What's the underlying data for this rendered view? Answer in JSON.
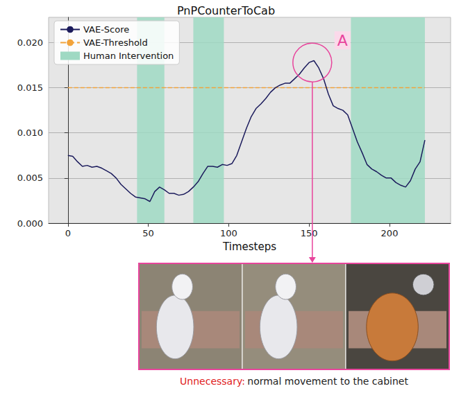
{
  "chart_data": {
    "type": "line",
    "title": "PnPCounterToCab",
    "x_label": "Timesteps",
    "x": [
      0,
      3,
      6,
      9,
      12,
      15,
      18,
      21,
      24,
      27,
      30,
      33,
      36,
      39,
      42,
      45,
      48,
      51,
      54,
      57,
      60,
      63,
      66,
      69,
      72,
      75,
      78,
      81,
      84,
      87,
      90,
      93,
      96,
      99,
      102,
      105,
      108,
      111,
      114,
      117,
      120,
      123,
      126,
      129,
      132,
      135,
      138,
      141,
      144,
      147,
      150,
      153,
      156,
      159,
      162,
      165,
      168,
      171,
      174,
      177,
      180,
      183,
      186,
      189,
      192,
      195,
      198,
      201,
      204,
      207,
      210,
      213,
      216,
      219,
      222
    ],
    "series": [
      {
        "name": "VAE-Score",
        "color": "#1b1b5c",
        "line_style": "solid",
        "values": [
          0.0075,
          0.0074,
          0.0068,
          0.0063,
          0.0064,
          0.0062,
          0.0063,
          0.0061,
          0.0058,
          0.0055,
          0.005,
          0.0043,
          0.0038,
          0.0033,
          0.0029,
          0.0028,
          0.0027,
          0.0024,
          0.0035,
          0.004,
          0.0037,
          0.0033,
          0.0033,
          0.0031,
          0.0032,
          0.0035,
          0.004,
          0.0046,
          0.0055,
          0.0063,
          0.0063,
          0.0062,
          0.0065,
          0.0064,
          0.0066,
          0.0075,
          0.009,
          0.0105,
          0.0118,
          0.0127,
          0.0132,
          0.0138,
          0.0145,
          0.015,
          0.0153,
          0.0155,
          0.0155,
          0.016,
          0.0165,
          0.0172,
          0.0178,
          0.018,
          0.0172,
          0.016,
          0.0143,
          0.013,
          0.0127,
          0.0125,
          0.012,
          0.0105,
          0.009,
          0.0078,
          0.0065,
          0.006,
          0.0057,
          0.0053,
          0.005,
          0.005,
          0.0045,
          0.0042,
          0.004,
          0.0047,
          0.006,
          0.0068,
          0.0092
        ]
      }
    ],
    "threshold": {
      "name": "VAE-Threshold",
      "value": 0.015,
      "color": "#f2a33a",
      "line_style": "dashed"
    },
    "intervals": {
      "name": "Human Intervention",
      "color": "#9fd9c3",
      "ranges": [
        [
          43,
          60
        ],
        [
          78,
          97
        ],
        [
          176,
          222
        ]
      ]
    },
    "xlim": [
      -12,
      238
    ],
    "xticks": [
      0,
      50,
      100,
      150,
      200
    ],
    "ylim": [
      0,
      0.0228
    ],
    "yticks": [
      {
        "value": 0,
        "label": "0.000"
      },
      {
        "value": 0.005,
        "label": "0.005"
      },
      {
        "value": 0.01,
        "label": "0.010"
      },
      {
        "value": 0.015,
        "label": "0.015"
      },
      {
        "value": 0.02,
        "label": "0.020"
      }
    ],
    "grid": "y",
    "legend": "upper left",
    "annotation": {
      "label": "A",
      "x": 152,
      "y": 0.0178,
      "color": "#e8449c"
    },
    "panel": {
      "caption_head": "Unnecessary:",
      "caption": "normal movement to the cabinet",
      "caption_head_color": "#e0201c",
      "color": "#e8449c"
    }
  }
}
